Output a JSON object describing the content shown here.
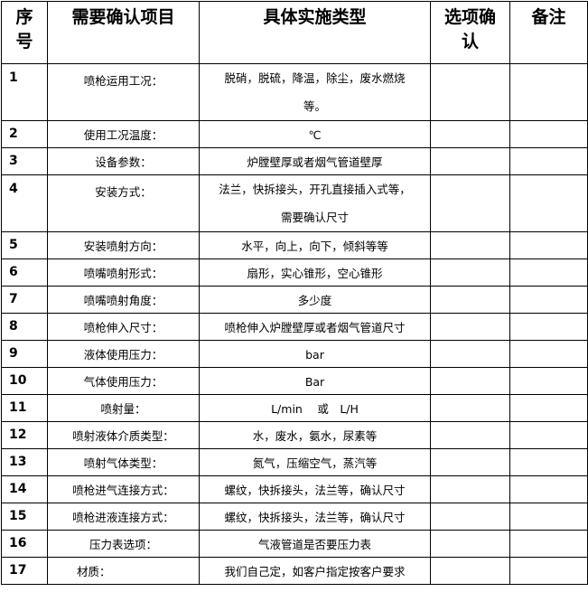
{
  "headers": [
    "序号",
    "需要确认项目",
    "具体实施类型",
    "选项确认",
    "备注"
  ],
  "rows": [
    {
      "no": "1",
      "item": "喷枪运用工况：",
      "type": "脱硝，脱硫，降温，除尘，废水燃烧等。",
      "confirm": "",
      "note": ""
    },
    {
      "no": "2",
      "item": "使用工况温度：",
      "type": "℃",
      "confirm": "",
      "note": ""
    },
    {
      "no": "3",
      "item": "设备参数：",
      "type": "炉膛壁厚或者烟气管道壁厚",
      "confirm": "",
      "note": ""
    },
    {
      "no": "4",
      "item": "安装方式：",
      "type": "法兰，快拆接头，开孔直接插入式等，需要确认尺寸",
      "confirm": "",
      "note": ""
    },
    {
      "no": "5",
      "item": "安装喷射方向：",
      "type": "水平，向上，向下，倾斜等等",
      "confirm": "",
      "note": ""
    },
    {
      "no": "6",
      "item": "喷嘴喷射形式：",
      "type": "扇形，实心锥形，空心锥形",
      "confirm": "",
      "note": ""
    },
    {
      "no": "7",
      "item": "喷嘴喷射角度：",
      "type": "多少度",
      "confirm": "",
      "note": ""
    },
    {
      "no": "8",
      "item": "喷枪伸入尺寸：",
      "type": "喷枪伸入炉膛壁厚或者烟气管道尺寸",
      "confirm": "",
      "note": ""
    },
    {
      "no": "9",
      "item": "液体使用压力：",
      "type": "bar",
      "confirm": "",
      "note": ""
    },
    {
      "no": "10",
      "item": "气体使用压力：",
      "type": "Bar",
      "confirm": "",
      "note": ""
    },
    {
      "no": "11",
      "item": "喷射量：",
      "type": "L/min　 或　L/H",
      "confirm": "",
      "note": ""
    },
    {
      "no": "12",
      "item": "喷射液体介质类型：",
      "type": "水，废水，氨水，尿素等",
      "confirm": "",
      "note": ""
    },
    {
      "no": "13",
      "item": "喷射气体类型：",
      "type": "氮气，压缩空气，蒸汽等",
      "confirm": "",
      "note": ""
    },
    {
      "no": "14",
      "item": "喷枪进气连接方式：",
      "type": "螺纹，快拆接头，法兰等，确认尺寸",
      "confirm": "",
      "note": ""
    },
    {
      "no": "15",
      "item": "喷枪进液连接方式：",
      "type": "螺纹，快拆接头，法兰等，确认尺寸",
      "confirm": "",
      "note": ""
    },
    {
      "no": "16",
      "item": "压力表选项：",
      "type": "气液管道是否要压力表",
      "confirm": "",
      "note": ""
    },
    {
      "no": "17",
      "item": "材质：",
      "type": "我们自己定，如客户指定按客户要求",
      "confirm": "",
      "note": ""
    }
  ]
}
